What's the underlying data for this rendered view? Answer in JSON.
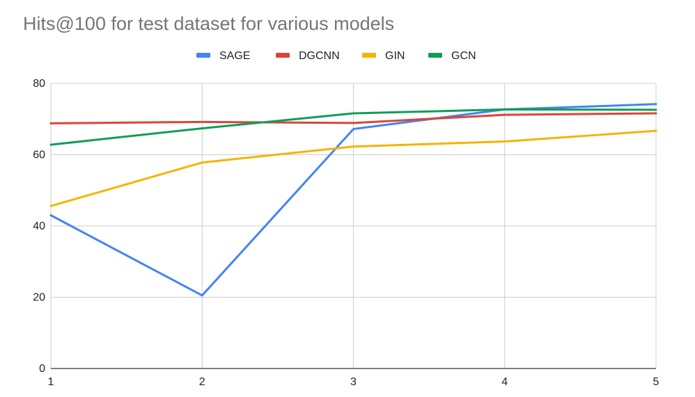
{
  "chart_data": {
    "type": "line",
    "title": "Hits@100 for test dataset for various models",
    "xlabel": "",
    "ylabel": "",
    "x": [
      1,
      2,
      3,
      4,
      5
    ],
    "x_tick_labels": [
      "1",
      "2",
      "3",
      "4",
      "5"
    ],
    "ylim": [
      0,
      80
    ],
    "y_ticks": [
      0,
      20,
      40,
      60,
      80
    ],
    "grid": true,
    "legend_position": "top",
    "series": [
      {
        "name": "SAGE",
        "color": "#4285f4",
        "values": [
          43.0,
          20.5,
          67.2,
          72.7,
          74.2
        ]
      },
      {
        "name": "DGCNN",
        "color": "#db4437",
        "values": [
          68.8,
          69.2,
          68.9,
          71.2,
          71.6
        ]
      },
      {
        "name": "GIN",
        "color": "#f4b400",
        "values": [
          45.6,
          57.8,
          62.3,
          63.7,
          66.7
        ]
      },
      {
        "name": "GCN",
        "color": "#0f9d58",
        "values": [
          62.8,
          67.4,
          71.6,
          72.7,
          72.6
        ]
      }
    ]
  }
}
